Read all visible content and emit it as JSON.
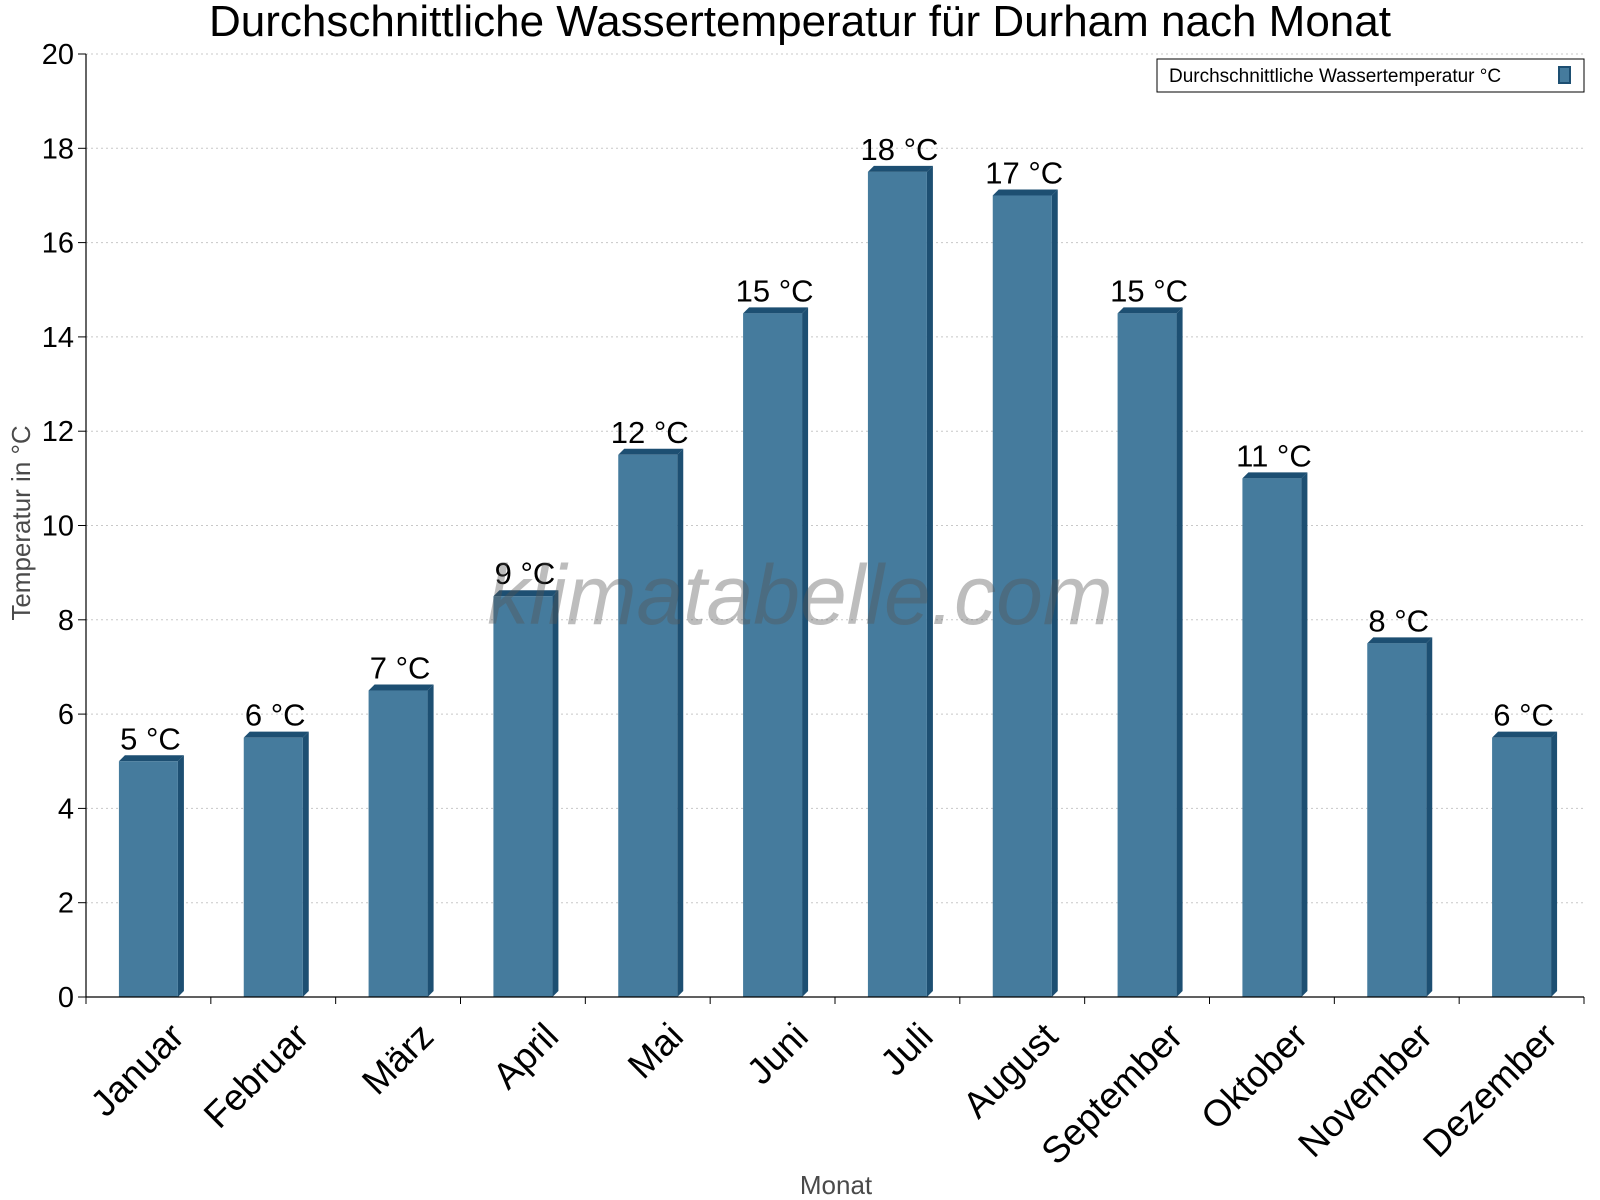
{
  "colors": {
    "bar_front": "#457b9d",
    "bar_side": "#1d4f72",
    "grid": "#c8c8c8",
    "axis": "#000000"
  },
  "watermark": "klimatabelle.com",
  "chart_data": {
    "type": "bar",
    "title": "Durchschnittliche Wassertemperatur für Durham nach Monat",
    "xlabel": "Monat",
    "ylabel": "Temperatur in °C",
    "ylim": [
      0,
      20
    ],
    "yticks": [
      0,
      2,
      4,
      6,
      8,
      10,
      12,
      14,
      16,
      18,
      20
    ],
    "grid": true,
    "legend_position": "top-right",
    "categories": [
      "Januar",
      "Februar",
      "März",
      "April",
      "Mai",
      "Juni",
      "Juli",
      "August",
      "September",
      "Oktober",
      "November",
      "Dezember"
    ],
    "series": [
      {
        "name": "Durchschnittliche Wassertemperatur °C",
        "values": [
          5,
          5.5,
          6.5,
          8.5,
          11.5,
          14.5,
          17.5,
          17,
          14.5,
          11,
          7.5,
          5.5
        ],
        "labels": [
          "5 °C",
          "6 °C",
          "7 °C",
          "9 °C",
          "12 °C",
          "15 °C",
          "18 °C",
          "17 °C",
          "15 °C",
          "11 °C",
          "8 °C",
          "6 °C"
        ]
      }
    ]
  }
}
